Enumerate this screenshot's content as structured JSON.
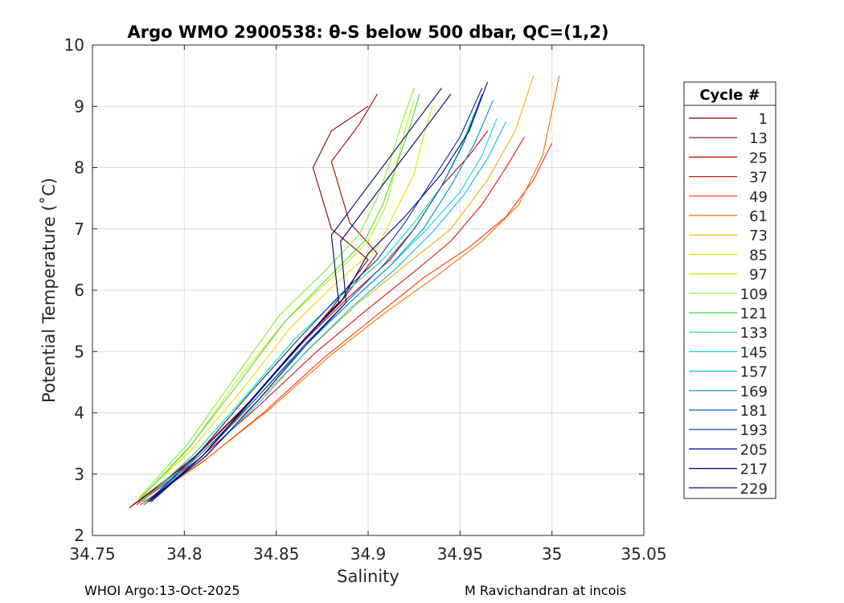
{
  "chart_data": {
    "type": "line",
    "title": "Argo WMO 2900538: θ-S below 500 dbar,  QC=(1,2)",
    "xlabel": "Salinity",
    "ylabel": "Potential Temperature (˚C)",
    "xlim": [
      34.75,
      35.05
    ],
    "ylim": [
      2,
      10
    ],
    "xticks": [
      "34.75",
      "34.8",
      "34.85",
      "34.9",
      "34.95",
      "35",
      "35.05"
    ],
    "yticks": [
      "2",
      "3",
      "4",
      "5",
      "6",
      "7",
      "8",
      "9",
      "10"
    ],
    "grid": true,
    "legend": {
      "title": "Cycle #",
      "placement": "right",
      "entries": [
        "1",
        "13",
        "25",
        "37",
        "49",
        "61",
        "73",
        "85",
        "97",
        "109",
        "121",
        "133",
        "145",
        "157",
        "169",
        "181",
        "193",
        "205",
        "217",
        "229"
      ],
      "colors": [
        "#800000",
        "#a00000",
        "#c00000",
        "#e01010",
        "#ff3300",
        "#ff7000",
        "#f0b000",
        "#e8e000",
        "#c8f000",
        "#80f030",
        "#40e040",
        "#10e090",
        "#10d8d8",
        "#10b8f0",
        "#0090d0",
        "#0060c0",
        "#0030a0",
        "#000090",
        "#000070",
        "#000060"
      ]
    },
    "series": [
      {
        "name": "1",
        "color": "#800000",
        "x": [
          34.77,
          34.8,
          34.83,
          34.86,
          34.88,
          34.9,
          34.88,
          34.87,
          34.88,
          34.9
        ],
        "y": [
          2.45,
          3.1,
          4.0,
          5.0,
          5.7,
          6.5,
          7.0,
          8.0,
          8.6,
          9.0
        ]
      },
      {
        "name": "13",
        "color": "#a00000",
        "x": [
          34.772,
          34.803,
          34.833,
          34.862,
          34.885,
          34.905,
          34.89,
          34.88,
          34.895,
          34.905
        ],
        "y": [
          2.5,
          3.2,
          4.1,
          5.1,
          5.8,
          6.6,
          7.1,
          8.1,
          8.7,
          9.2
        ]
      },
      {
        "name": "25",
        "color": "#c00000",
        "x": [
          34.775,
          34.806,
          34.836,
          34.866,
          34.89,
          34.912,
          34.925,
          34.94,
          34.955,
          34.965
        ],
        "y": [
          2.55,
          3.3,
          4.2,
          5.2,
          5.9,
          6.5,
          7.0,
          7.7,
          8.2,
          8.6
        ]
      },
      {
        "name": "37",
        "color": "#e01010",
        "x": [
          34.774,
          34.808,
          34.84,
          34.872,
          34.9,
          34.925,
          34.945,
          34.962,
          34.975,
          34.985
        ],
        "y": [
          2.5,
          3.25,
          4.1,
          5.0,
          5.7,
          6.3,
          6.8,
          7.4,
          8.0,
          8.5
        ]
      },
      {
        "name": "49",
        "color": "#ff3300",
        "x": [
          34.776,
          34.81,
          34.843,
          34.876,
          34.905,
          34.93,
          34.955,
          34.975,
          34.99,
          35.0
        ],
        "y": [
          2.5,
          3.2,
          4.0,
          4.9,
          5.6,
          6.2,
          6.7,
          7.2,
          7.8,
          8.4
        ]
      },
      {
        "name": "61",
        "color": "#ff7000",
        "x": [
          34.778,
          34.812,
          34.846,
          34.88,
          34.91,
          34.938,
          34.962,
          34.982,
          34.995,
          35.004
        ],
        "y": [
          2.55,
          3.25,
          4.05,
          4.95,
          5.65,
          6.25,
          6.8,
          7.4,
          8.2,
          9.5
        ]
      },
      {
        "name": "73",
        "color": "#f0b000",
        "x": [
          34.776,
          34.808,
          34.84,
          34.87,
          34.895,
          34.92,
          34.945,
          34.965,
          34.98,
          34.99
        ],
        "y": [
          2.55,
          3.3,
          4.2,
          5.1,
          5.8,
          6.4,
          7.0,
          7.8,
          8.6,
          9.5
        ]
      },
      {
        "name": "85",
        "color": "#e8e000",
        "x": [
          34.775,
          34.804,
          34.832,
          34.858,
          34.882,
          34.905,
          34.915,
          34.925,
          34.93,
          34.935
        ],
        "y": [
          2.6,
          3.4,
          4.4,
          5.4,
          6.1,
          6.7,
          7.3,
          7.9,
          8.5,
          9.0
        ]
      },
      {
        "name": "97",
        "color": "#c8f000",
        "x": [
          34.776,
          34.802,
          34.828,
          34.855,
          34.88,
          34.9,
          34.91,
          34.915,
          34.92,
          34.925
        ],
        "y": [
          2.6,
          3.4,
          4.5,
          5.5,
          6.2,
          6.8,
          7.4,
          8.0,
          8.6,
          9.1
        ]
      },
      {
        "name": "109",
        "color": "#80f030",
        "x": [
          34.775,
          34.802,
          34.828,
          34.852,
          34.876,
          34.895,
          34.905,
          34.912,
          34.918,
          34.925
        ],
        "y": [
          2.6,
          3.5,
          4.6,
          5.6,
          6.3,
          6.9,
          7.5,
          8.1,
          8.7,
          9.3
        ]
      },
      {
        "name": "121",
        "color": "#40e040",
        "x": [
          34.776,
          34.803,
          34.83,
          34.855,
          34.878,
          34.898,
          34.908,
          34.915,
          34.922,
          34.928
        ],
        "y": [
          2.6,
          3.45,
          4.5,
          5.5,
          6.2,
          6.8,
          7.4,
          8.0,
          8.6,
          9.2
        ]
      },
      {
        "name": "133",
        "color": "#10e090",
        "x": [
          34.777,
          34.806,
          34.834,
          34.86,
          34.885,
          34.908,
          34.925,
          34.94,
          34.95,
          34.958
        ],
        "y": [
          2.55,
          3.35,
          4.3,
          5.2,
          5.9,
          6.5,
          7.1,
          7.7,
          8.3,
          8.9
        ]
      },
      {
        "name": "145",
        "color": "#10d8d8",
        "x": [
          34.776,
          34.808,
          34.838,
          34.865,
          34.89,
          34.912,
          34.932,
          34.95,
          34.962,
          34.97
        ],
        "y": [
          2.55,
          3.3,
          4.2,
          5.1,
          5.8,
          6.4,
          7.0,
          7.6,
          8.2,
          8.8
        ]
      },
      {
        "name": "157",
        "color": "#10b8f0",
        "x": [
          34.778,
          34.81,
          34.84,
          34.868,
          34.892,
          34.915,
          34.935,
          34.952,
          34.965,
          34.975
        ],
        "y": [
          2.5,
          3.25,
          4.15,
          5.05,
          5.75,
          6.35,
          6.95,
          7.55,
          8.15,
          8.75
        ]
      },
      {
        "name": "169",
        "color": "#0090d0",
        "x": [
          34.778,
          34.808,
          34.838,
          34.866,
          34.89,
          34.912,
          34.93,
          34.945,
          34.958,
          34.968
        ],
        "y": [
          2.5,
          3.3,
          4.2,
          5.1,
          5.8,
          6.4,
          7.0,
          7.7,
          8.4,
          9.1
        ]
      },
      {
        "name": "181",
        "color": "#0060c0",
        "x": [
          34.78,
          34.81,
          34.838,
          34.865,
          34.888,
          34.908,
          34.925,
          34.94,
          34.952,
          34.962
        ],
        "y": [
          2.55,
          3.3,
          4.2,
          5.1,
          5.8,
          6.4,
          7.0,
          7.7,
          8.4,
          9.2
        ]
      },
      {
        "name": "193",
        "color": "#0030a0",
        "x": [
          34.78,
          34.808,
          34.835,
          34.862,
          34.884,
          34.905,
          34.92,
          34.935,
          34.95,
          34.962
        ],
        "y": [
          2.55,
          3.35,
          4.3,
          5.2,
          5.9,
          6.5,
          7.1,
          7.8,
          8.5,
          9.3
        ]
      },
      {
        "name": "205",
        "color": "#000090",
        "x": [
          34.781,
          34.81,
          34.838,
          34.864,
          34.886,
          34.9,
          34.92,
          34.94,
          34.955,
          34.965
        ],
        "y": [
          2.55,
          3.3,
          4.25,
          5.15,
          5.85,
          6.6,
          7.2,
          7.9,
          8.6,
          9.4
        ]
      },
      {
        "name": "217",
        "color": "#000070",
        "x": [
          34.782,
          34.812,
          34.84,
          34.866,
          34.888,
          34.885,
          34.9,
          34.915,
          34.93,
          34.945
        ],
        "y": [
          2.6,
          3.3,
          4.2,
          5.1,
          5.8,
          6.8,
          7.4,
          8.0,
          8.6,
          9.2
        ]
      },
      {
        "name": "229",
        "color": "#000060",
        "x": [
          34.782,
          34.81,
          34.836,
          34.862,
          34.884,
          34.88,
          34.895,
          34.91,
          34.925,
          34.94
        ],
        "y": [
          2.55,
          3.3,
          4.2,
          5.1,
          5.8,
          6.9,
          7.5,
          8.1,
          8.7,
          9.3
        ]
      }
    ]
  },
  "footer": {
    "left": "WHOI Argo:13-Oct-2025",
    "right": "M Ravichandran at incois"
  }
}
